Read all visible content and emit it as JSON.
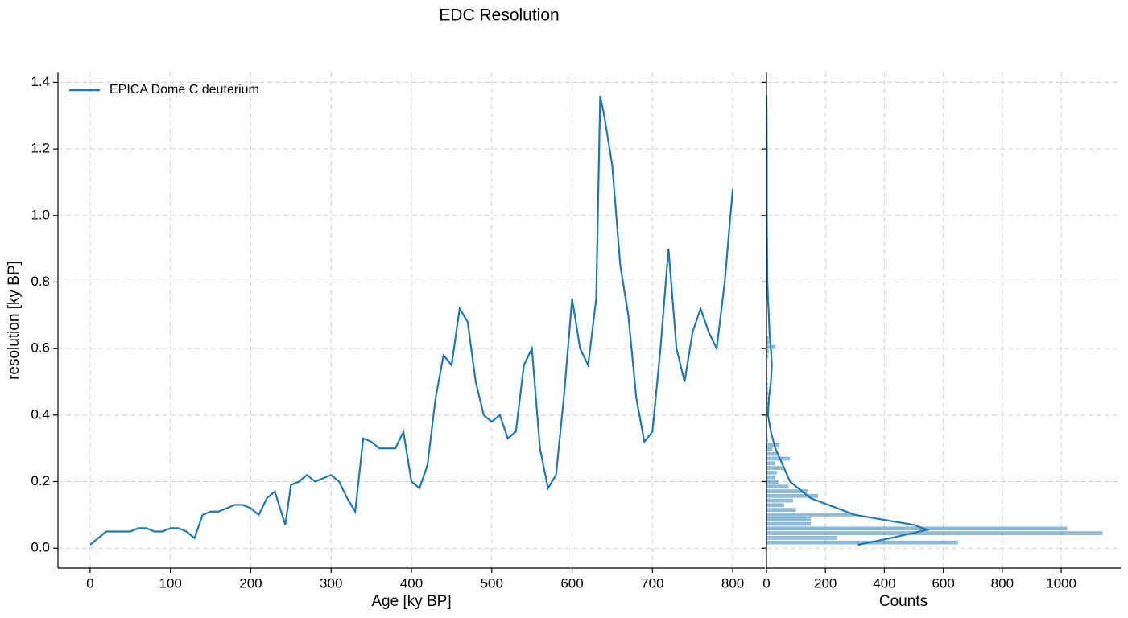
{
  "title": "EDC Resolution",
  "chart_data": [
    {
      "type": "line",
      "xlabel": "Age [ky BP]",
      "ylabel": "resolution [ky BP]",
      "grid": true,
      "legend": "upper left",
      "xlim": [
        -40,
        840
      ],
      "ylim": [
        -0.06,
        1.43
      ],
      "xticks": [
        0,
        100,
        200,
        300,
        400,
        500,
        600,
        700,
        800
      ],
      "yticks": [
        {
          "value": 0,
          "label": "0.0"
        },
        0.2,
        0.4,
        0.6,
        0.8,
        {
          "value": 1,
          "label": "1.0"
        },
        1.2,
        1.4
      ],
      "series": [
        {
          "name": "EPICA Dome C deuterium",
          "color": "#1f77b4",
          "x": [
            0,
            10,
            20,
            30,
            40,
            50,
            60,
            70,
            80,
            90,
            100,
            110,
            120,
            130,
            140,
            150,
            160,
            170,
            180,
            190,
            200,
            210,
            220,
            230,
            243,
            250,
            260,
            270,
            280,
            290,
            300,
            310,
            320,
            330,
            340,
            350,
            360,
            370,
            380,
            390,
            400,
            410,
            420,
            430,
            440,
            450,
            460,
            470,
            480,
            490,
            500,
            510,
            520,
            530,
            540,
            550,
            560,
            570,
            580,
            590,
            600,
            610,
            620,
            630,
            635,
            640,
            650,
            660,
            670,
            680,
            690,
            700,
            710,
            720,
            730,
            740,
            750,
            760,
            770,
            780,
            790,
            800
          ],
          "values": [
            0.01,
            0.03,
            0.05,
            0.05,
            0.05,
            0.05,
            0.06,
            0.06,
            0.05,
            0.05,
            0.06,
            0.06,
            0.05,
            0.03,
            0.1,
            0.11,
            0.11,
            0.12,
            0.13,
            0.13,
            0.12,
            0.1,
            0.15,
            0.17,
            0.07,
            0.19,
            0.2,
            0.22,
            0.2,
            0.21,
            0.22,
            0.2,
            0.15,
            0.11,
            0.33,
            0.32,
            0.3,
            0.3,
            0.3,
            0.35,
            0.2,
            0.18,
            0.25,
            0.45,
            0.58,
            0.55,
            0.72,
            0.68,
            0.5,
            0.4,
            0.38,
            0.4,
            0.33,
            0.35,
            0.55,
            0.6,
            0.3,
            0.18,
            0.22,
            0.46,
            0.75,
            0.6,
            0.55,
            0.75,
            1.36,
            1.3,
            1.15,
            0.85,
            0.7,
            0.45,
            0.32,
            0.35,
            0.6,
            0.9,
            0.6,
            0.5,
            0.65,
            0.72,
            0.65,
            0.6,
            0.8,
            1.08
          ]
        }
      ]
    },
    {
      "type": "histogram",
      "xlabel": "Counts",
      "grid": true,
      "color": "#1f77b4",
      "alpha": 0.5,
      "xlim": [
        0,
        1202
      ],
      "ylim": [
        -0.06,
        1.43
      ],
      "xticks": [
        0,
        200,
        400,
        600,
        800,
        1000
      ],
      "yticks": [
        0,
        0.2,
        0.4,
        0.6,
        0.8,
        1,
        1.2,
        1.4
      ],
      "bins": [
        0.01,
        0.024,
        0.038,
        0.052,
        0.066,
        0.08,
        0.094,
        0.108,
        0.122,
        0.136,
        0.15,
        0.164,
        0.178,
        0.192,
        0.206,
        0.22,
        0.234,
        0.248,
        0.262,
        0.276,
        0.29,
        0.304,
        0.318,
        0.332,
        0.346,
        0.36,
        0.374,
        0.388,
        0.402,
        0.416,
        0.43,
        0.444,
        0.458,
        0.472,
        0.486,
        0.5,
        0.514,
        0.528,
        0.542,
        0.556,
        0.57,
        0.584,
        0.598,
        0.612,
        0.626,
        0.64
      ],
      "counts": [
        650,
        240,
        1140,
        1020,
        150,
        150,
        300,
        100,
        60,
        90,
        175,
        140,
        75,
        40,
        30,
        35,
        55,
        30,
        80,
        40,
        20,
        45,
        5,
        3,
        2,
        2,
        2,
        2,
        5,
        8,
        10,
        8,
        6,
        5,
        5,
        3,
        2,
        2,
        2,
        2,
        6,
        8,
        30,
        10,
        8
      ],
      "kde": {
        "color": "#1f77b4",
        "values": [
          310,
          420,
          545,
          500,
          300,
          150,
          80,
          55,
          30,
          15,
          5,
          8,
          15,
          18,
          15,
          10,
          8,
          5,
          3,
          2,
          1,
          1,
          0
        ],
        "y": [
          0.01,
          0.03,
          0.055,
          0.07,
          0.1,
          0.15,
          0.2,
          0.25,
          0.3,
          0.35,
          0.4,
          0.45,
          0.5,
          0.55,
          0.6,
          0.65,
          0.7,
          0.75,
          0.8,
          0.9,
          1.0,
          1.2,
          1.36
        ]
      }
    }
  ]
}
